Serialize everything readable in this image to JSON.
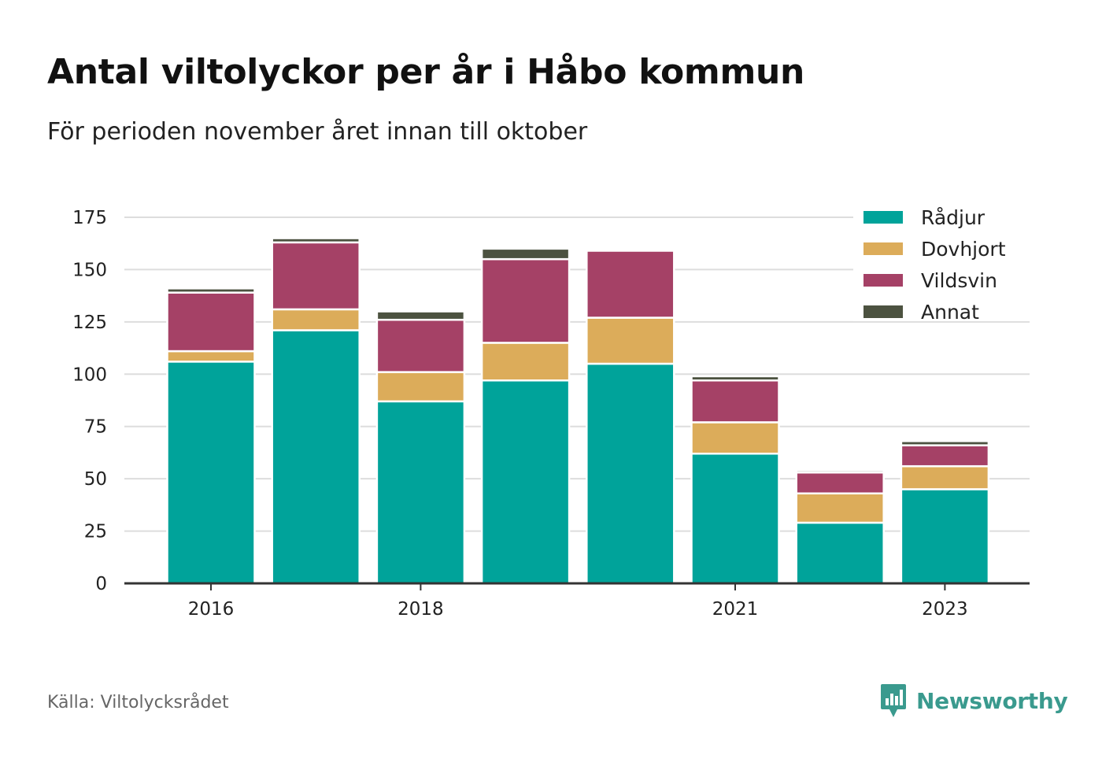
{
  "header": {
    "title": "Antal viltolyckor per år i Håbo kommun",
    "subtitle": "För perioden november året innan till oktober"
  },
  "footer": {
    "source": "Källa: Viltolycksrådet",
    "brand": "Newsworthy"
  },
  "colors": {
    "Rådjur": "#00a39a",
    "Dovhjort": "#dcac5a",
    "Vildsvin": "#a54166",
    "Annat": "#4c5240",
    "grid": "#dddddd",
    "axis": "#333333",
    "brand": "#3a9a8e"
  },
  "chart_data": {
    "type": "bar",
    "stacked": true,
    "x": [
      2016,
      2017,
      2018,
      2019,
      2020,
      2021,
      2022,
      2023
    ],
    "x_tick_labels": [
      "2016",
      "2018",
      "2021",
      "2023"
    ],
    "y_ticks": [
      0,
      25,
      50,
      75,
      100,
      125,
      150,
      175
    ],
    "ylim": [
      0,
      175
    ],
    "grid": true,
    "legend_position": "top-right",
    "series": [
      {
        "name": "Rådjur",
        "values": [
          106,
          121,
          87,
          97,
          105,
          62,
          29,
          45
        ]
      },
      {
        "name": "Dovhjort",
        "values": [
          5,
          10,
          14,
          18,
          22,
          15,
          14,
          11
        ]
      },
      {
        "name": "Vildsvin",
        "values": [
          28,
          32,
          25,
          40,
          32,
          20,
          10,
          10
        ]
      },
      {
        "name": "Annat",
        "values": [
          2,
          2,
          4,
          5,
          0,
          2,
          1,
          2
        ]
      }
    ]
  }
}
